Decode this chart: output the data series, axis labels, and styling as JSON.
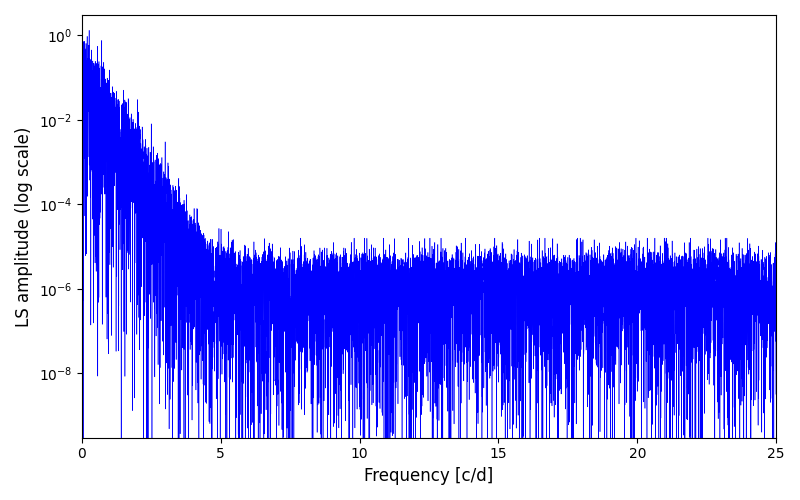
{
  "xlabel": "Frequency [c/d]",
  "ylabel": "LS amplitude (log scale)",
  "line_color": "blue",
  "xlim": [
    0,
    25
  ],
  "ylim": [
    3e-10,
    3.0
  ],
  "yscale": "log",
  "yticks": [
    1e-08,
    1e-06,
    0.0001,
    0.01,
    1.0
  ],
  "xticks": [
    0,
    5,
    10,
    15,
    20,
    25
  ],
  "figsize": [
    8.0,
    5.0
  ],
  "dpi": 100,
  "n_points": 8000,
  "freq_max": 25.0,
  "background_color": "#ffffff",
  "linewidth": 0.4
}
